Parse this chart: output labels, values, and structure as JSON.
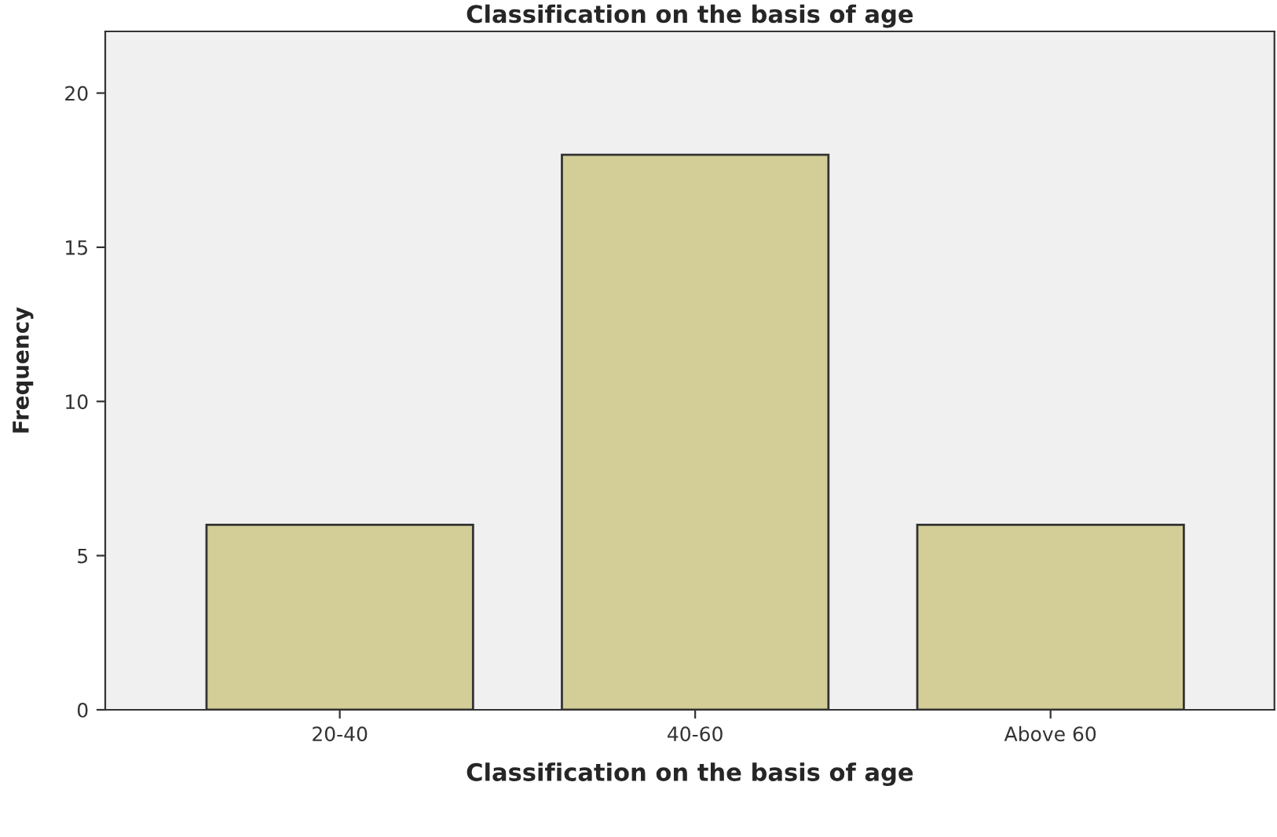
{
  "chart_data": {
    "type": "bar",
    "title": "Classification on the basis of age",
    "xlabel": "Classification on the basis of age",
    "ylabel": "Frequency",
    "categories": [
      "20-40",
      "40-60",
      "Above 60"
    ],
    "values": [
      6,
      18,
      6
    ],
    "color": "#d3ce97",
    "ylim": [
      0,
      22
    ],
    "yticks": [
      0,
      5,
      10,
      15,
      20
    ],
    "grid": false,
    "legend": false
  }
}
